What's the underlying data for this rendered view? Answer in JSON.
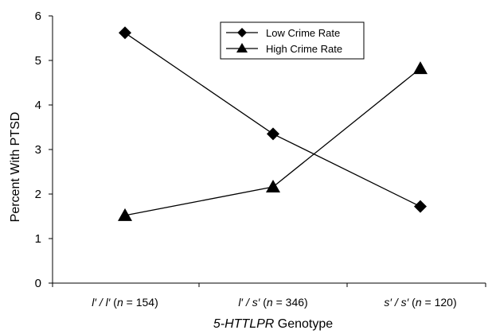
{
  "chart_data": {
    "type": "line",
    "ylabel": "Percent  With PTSD",
    "xlabel": {
      "italic": "5-HTTLPR",
      "plain": " Genotype"
    },
    "ylim": [
      0,
      6
    ],
    "yticks": [
      0,
      1,
      2,
      3,
      4,
      5,
      6
    ],
    "categories": [
      {
        "geno": "l′ / l′",
        "n_label": "n",
        "n_value": " = 154"
      },
      {
        "geno": "l′ / s′",
        "n_label": "n",
        "n_value": " = 346"
      },
      {
        "geno": "s′ / s′",
        "n_label": "n",
        "n_value": " = 120"
      }
    ],
    "series": [
      {
        "name": "Low Crime Rate",
        "marker": "diamond",
        "values": [
          5.62,
          3.35,
          1.72
        ]
      },
      {
        "name": "High Crime Rate",
        "marker": "triangle",
        "values": [
          1.52,
          2.16,
          4.82
        ]
      }
    ],
    "legend_position": "top-center",
    "grid": false
  }
}
